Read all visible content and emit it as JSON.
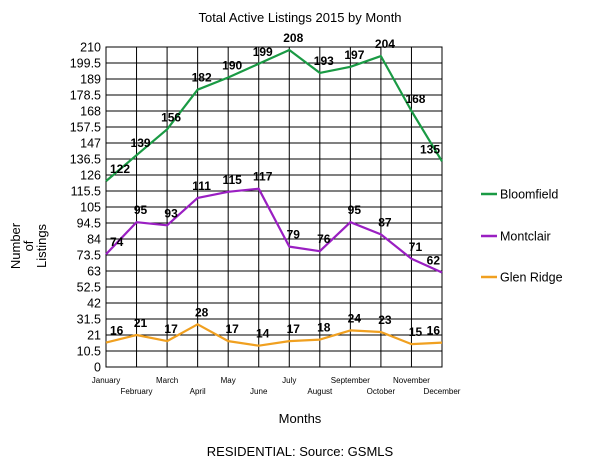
{
  "chart_data": {
    "type": "line",
    "title": "Total Active Listings 2015 by Month",
    "xlabel": "Months",
    "ylabel_lines": [
      "Number",
      "of",
      "Listings"
    ],
    "source": "RESIDENTIAL: Source: GSMLS",
    "categories": [
      "January",
      "February",
      "March",
      "April",
      "May",
      "June",
      "July",
      "August",
      "September",
      "October",
      "November",
      "December"
    ],
    "ylim": [
      0,
      210
    ],
    "yticks": [
      "0",
      "10.5",
      "21",
      "31.5",
      "42",
      "52.5",
      "63",
      "73.5",
      "84",
      "94.5",
      "105",
      "115.5",
      "126",
      "136.5",
      "147",
      "157.5",
      "168",
      "178.5",
      "189",
      "199.5",
      "210"
    ],
    "grid": true,
    "legend_position": "right",
    "series": [
      {
        "name": "Bloomfield",
        "color": "#1a9a44",
        "values": [
          122,
          139,
          156,
          182,
          190,
          199,
          208,
          193,
          197,
          204,
          168,
          135
        ]
      },
      {
        "name": "Montclair",
        "color": "#9a1fc2",
        "values": [
          74,
          95,
          93,
          111,
          115,
          117,
          79,
          76,
          95,
          87,
          71,
          62
        ]
      },
      {
        "name": "Glen Ridge",
        "color": "#f0a020",
        "values": [
          16,
          21,
          17,
          28,
          17,
          14,
          17,
          18,
          24,
          23,
          15,
          16
        ]
      }
    ]
  }
}
